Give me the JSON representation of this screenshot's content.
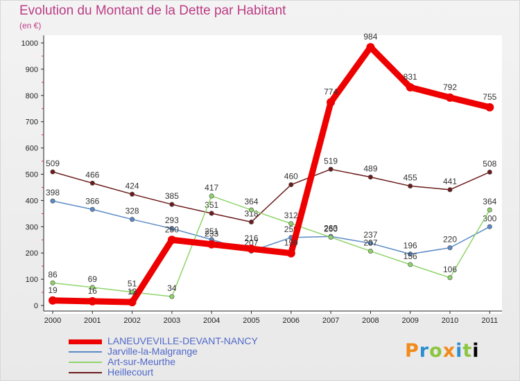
{
  "title": "Evolution du Montant de la Dette par Habitant",
  "subtitle": "(en €)",
  "brand": "Proxiti",
  "chart_data": {
    "type": "line",
    "title": "Evolution du Montant de la Dette par Habitant",
    "ylabel": "(en €)",
    "xlabel": "",
    "x": [
      "2000",
      "2001",
      "2002",
      "2003",
      "2004",
      "2005",
      "2006",
      "2007",
      "2008",
      "2009",
      "2010",
      "2011"
    ],
    "y_ticks": [
      "0",
      "100",
      "200",
      "300",
      "400",
      "500",
      "600",
      "700",
      "800",
      "900",
      "1000"
    ],
    "ylim": [
      0,
      1000
    ],
    "grid": false,
    "legend_position": "bottom-left",
    "series": [
      {
        "name": "Heillecourt",
        "color": "#6b1a1a",
        "width": 1.5,
        "values": [
          509,
          466,
          424,
          385,
          351,
          318,
          460,
          519,
          489,
          455,
          441,
          508
        ]
      },
      {
        "name": "Jarville-la-Malgrange",
        "color": "#5a8ac6",
        "width": 1.5,
        "values": [
          398,
          366,
          328,
          293,
          251,
          207,
          259,
          263,
          237,
          196,
          220,
          300
        ]
      },
      {
        "name": "Art-sur-Meurthe",
        "color": "#8fd46a",
        "width": 1.5,
        "values": [
          86,
          69,
          51,
          34,
          417,
          364,
          312,
          260,
          207,
          156,
          106,
          364
        ]
      },
      {
        "name": "LANEUVEVILLE-DEVANT-NANCY",
        "color": "#ee0000",
        "width": 9,
        "values": [
          19,
          16,
          13,
          250,
          233,
          216,
          199,
          774,
          984,
          831,
          792,
          755
        ]
      }
    ],
    "legend_order": [
      "LANEUVEVILLE-DEVANT-NANCY",
      "Jarville-la-Malgrange",
      "Art-sur-Meurthe",
      "Heillecourt"
    ]
  }
}
